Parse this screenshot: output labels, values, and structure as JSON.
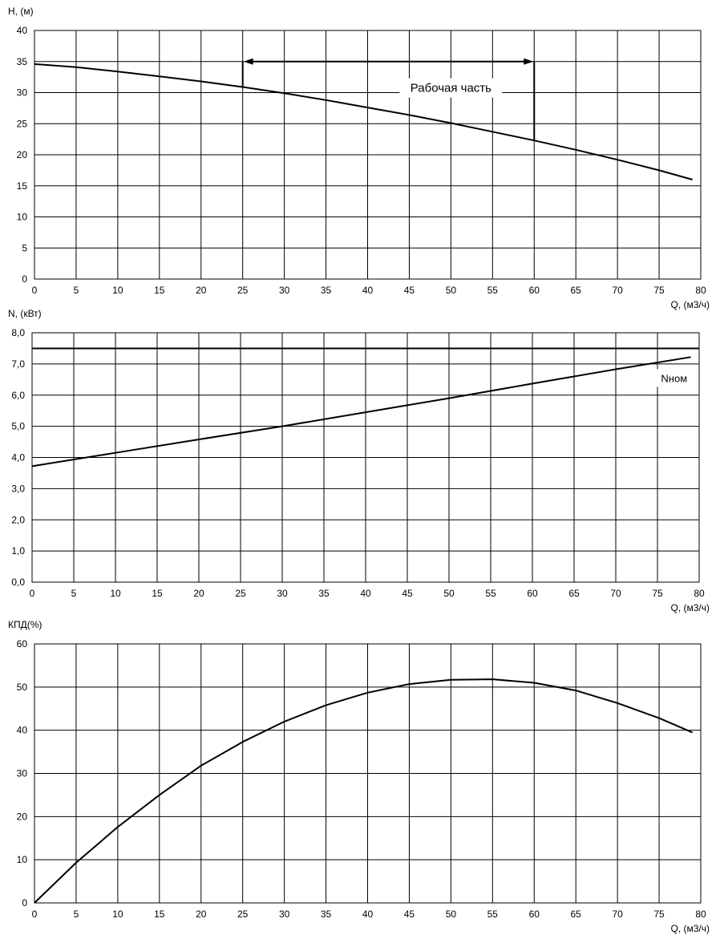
{
  "chart_data": [
    {
      "type": "line",
      "ylabel": "H, (м)",
      "xlabel": "Q, (м3/ч)",
      "xlim": [
        0,
        80
      ],
      "ylim": [
        0,
        40
      ],
      "x_ticks": [
        "0",
        "5",
        "10",
        "15",
        "20",
        "25",
        "30",
        "35",
        "40",
        "45",
        "50",
        "55",
        "60",
        "65",
        "70",
        "75",
        "80"
      ],
      "y_ticks": [
        "0",
        "5",
        "10",
        "15",
        "20",
        "25",
        "30",
        "35",
        "40"
      ],
      "grid": true,
      "series": [
        {
          "x": [
            0,
            5,
            10,
            15,
            20,
            25,
            30,
            35,
            40,
            45,
            50,
            55,
            60,
            65,
            70,
            75,
            79
          ],
          "y": [
            34.6,
            34.1,
            33.4,
            32.6,
            31.8,
            30.9,
            29.9,
            28.8,
            27.6,
            26.4,
            25.1,
            23.7,
            22.3,
            20.8,
            19.2,
            17.5,
            16.0
          ]
        }
      ],
      "annotations": [
        {
          "text": "Рабочая часть",
          "x_start": 25,
          "x_end": 60,
          "arrow_y": 35,
          "label_x": 50,
          "label_y": 30.5
        }
      ]
    },
    {
      "type": "line",
      "ylabel": "N, (кВт)",
      "xlabel": "Q, (м3/ч)",
      "xlim": [
        0,
        80
      ],
      "ylim": [
        0,
        8
      ],
      "x_ticks": [
        "0",
        "5",
        "10",
        "15",
        "20",
        "25",
        "30",
        "35",
        "40",
        "45",
        "50",
        "55",
        "60",
        "65",
        "70",
        "75",
        "80"
      ],
      "y_ticks": [
        "0,0",
        "1,0",
        "2,0",
        "3,0",
        "4,0",
        "5,0",
        "6,0",
        "7,0",
        "8,0"
      ],
      "grid": true,
      "series": [
        {
          "x": [
            0,
            10,
            20,
            30,
            40,
            50,
            60,
            70,
            79
          ],
          "y": [
            3.72,
            4.15,
            4.58,
            5.0,
            5.45,
            5.9,
            6.37,
            6.83,
            7.22
          ]
        }
      ],
      "reference_line": {
        "y": 7.5,
        "label": "Nном"
      }
    },
    {
      "type": "line",
      "ylabel": "КПД(%)",
      "xlabel": "Q, (м3/ч)",
      "xlim": [
        0,
        80
      ],
      "ylim": [
        0,
        60
      ],
      "x_ticks": [
        "0",
        "5",
        "10",
        "15",
        "20",
        "25",
        "30",
        "35",
        "40",
        "45",
        "50",
        "55",
        "60",
        "65",
        "70",
        "75",
        "80"
      ],
      "y_ticks": [
        "0",
        "10",
        "20",
        "30",
        "40",
        "50",
        "60"
      ],
      "grid": true,
      "series": [
        {
          "x": [
            0,
            5,
            10,
            15,
            20,
            25,
            30,
            35,
            40,
            45,
            50,
            55,
            60,
            65,
            70,
            75,
            79
          ],
          "y": [
            0,
            9.3,
            17.6,
            25.0,
            31.8,
            37.3,
            42.0,
            45.8,
            48.7,
            50.7,
            51.7,
            51.8,
            51.0,
            49.2,
            46.3,
            42.8,
            39.5
          ]
        }
      ]
    }
  ]
}
